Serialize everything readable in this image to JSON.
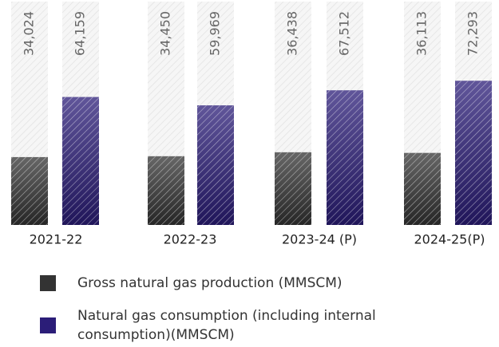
{
  "chart_data": {
    "type": "bar",
    "categories": [
      "2021-22",
      "2022-23",
      "2023-24 (P)",
      "2024-25(P)"
    ],
    "series": [
      {
        "name": "Gross natural gas production (MMSCM)",
        "color": "#333333",
        "values": [
          34024,
          34450,
          36438,
          36113
        ],
        "value_labels": [
          "34,024",
          "34,450",
          "36,438",
          "36,113"
        ]
      },
      {
        "name": "Natural gas consumption (including internal consumption)(MMSCM)",
        "color": "#2b1d78",
        "values": [
          64159,
          59969,
          67512,
          72293
        ],
        "value_labels": [
          "64,159",
          "59,969",
          "67,512",
          "72,293"
        ]
      }
    ],
    "ylim": [
      0,
      112000
    ]
  }
}
